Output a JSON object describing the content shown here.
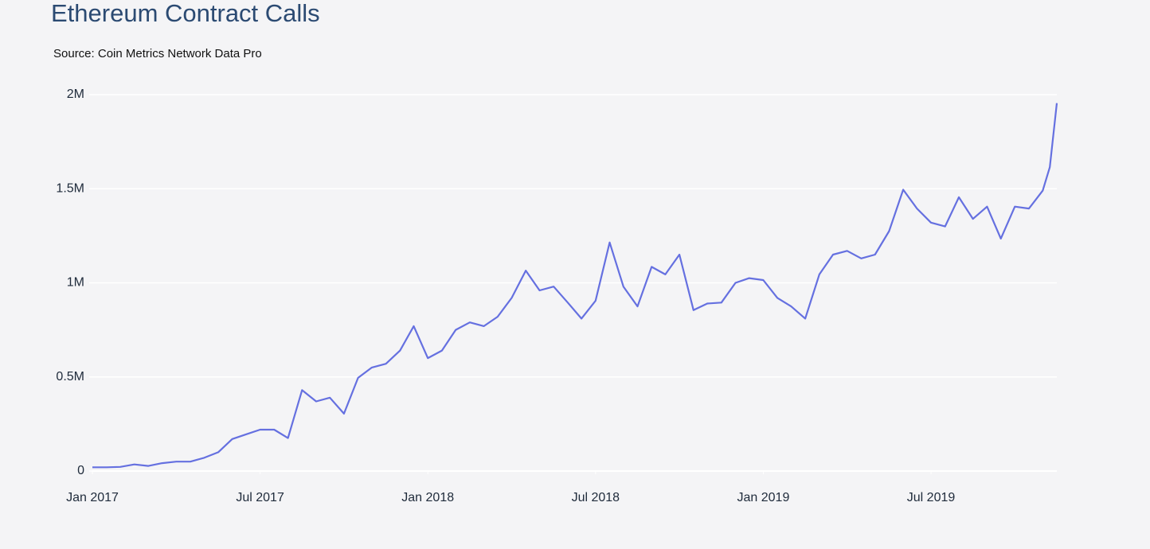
{
  "chart_data": {
    "type": "line",
    "title": "Ethereum Contract Calls",
    "subtitle": "Source: Coin Metrics Network Data Pro",
    "x": [
      2017.0,
      2017.042,
      2017.083,
      2017.125,
      2017.167,
      2017.208,
      2017.25,
      2017.292,
      2017.333,
      2017.375,
      2017.417,
      2017.458,
      2017.5,
      2017.542,
      2017.583,
      2017.625,
      2017.667,
      2017.708,
      2017.75,
      2017.792,
      2017.833,
      2017.875,
      2017.917,
      2017.958,
      2018.0,
      2018.042,
      2018.083,
      2018.125,
      2018.167,
      2018.208,
      2018.25,
      2018.292,
      2018.333,
      2018.375,
      2018.417,
      2018.458,
      2018.5,
      2018.542,
      2018.583,
      2018.625,
      2018.667,
      2018.708,
      2018.75,
      2018.792,
      2018.833,
      2018.875,
      2018.917,
      2018.958,
      2019.0,
      2019.042,
      2019.083,
      2019.125,
      2019.167,
      2019.208,
      2019.25,
      2019.292,
      2019.333,
      2019.375,
      2019.417,
      2019.458,
      2019.5,
      2019.542,
      2019.583,
      2019.625,
      2019.667,
      2019.708,
      2019.75,
      2019.792,
      2019.833,
      2019.854,
      2019.875
    ],
    "series": [
      {
        "name": "Contract Calls",
        "color": "#6570e0",
        "values": [
          20000,
          20000,
          22000,
          35000,
          27000,
          42000,
          50000,
          50000,
          70000,
          100000,
          170000,
          195000,
          220000,
          220000,
          175000,
          430000,
          370000,
          390000,
          305000,
          495000,
          550000,
          570000,
          640000,
          770000,
          600000,
          640000,
          750000,
          790000,
          770000,
          820000,
          920000,
          1065000,
          960000,
          980000,
          895000,
          810000,
          905000,
          1215000,
          980000,
          875000,
          1085000,
          1045000,
          1150000,
          855000,
          890000,
          895000,
          1000000,
          1025000,
          1015000,
          920000,
          875000,
          810000,
          1045000,
          1150000,
          1170000,
          1130000,
          1150000,
          1275000,
          1495000,
          1395000,
          1320000,
          1300000,
          1455000,
          1340000,
          1405000,
          1235000,
          1405000,
          1395000,
          1490000,
          1615000,
          1955000
        ]
      }
    ],
    "xlim": [
      2017.0,
      2019.875
    ],
    "xticks": [
      {
        "value": 2017.0,
        "label": "Jan 2017"
      },
      {
        "value": 2017.5,
        "label": "Jul 2017"
      },
      {
        "value": 2018.0,
        "label": "Jan 2018"
      },
      {
        "value": 2018.5,
        "label": "Jul 2018"
      },
      {
        "value": 2019.0,
        "label": "Jan 2019"
      },
      {
        "value": 2019.5,
        "label": "Jul 2019"
      }
    ],
    "ylim": [
      0,
      2000000
    ],
    "yticks": [
      0,
      {
        "value": 500000,
        "label": "0.5M"
      },
      {
        "value": 1000000,
        "label": "1M"
      },
      {
        "value": 1500000,
        "label": "1.5M"
      },
      {
        "value": 2000000,
        "label": "2M"
      }
    ],
    "grid": true
  }
}
